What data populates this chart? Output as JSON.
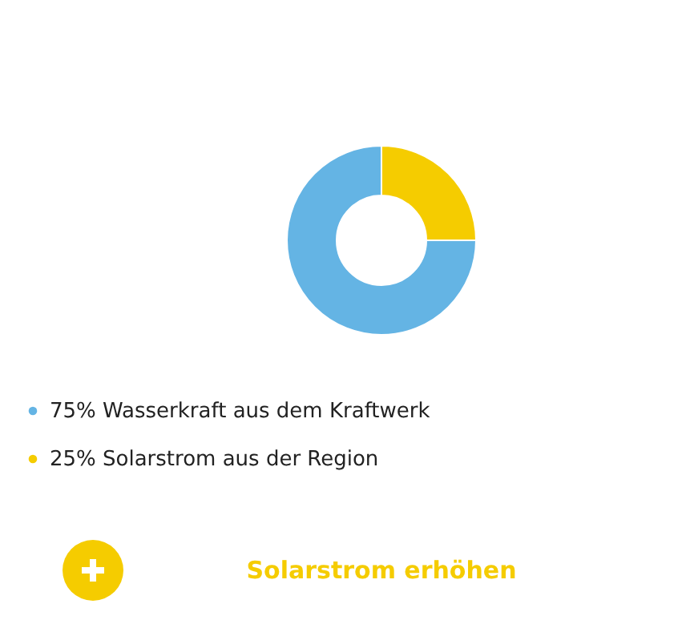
{
  "chart_data": {
    "type": "donut",
    "categories": [
      "75% Wasserkraft aus dem Kraftwerk",
      "25% Solarstrom aus der Region"
    ],
    "values": [
      75,
      25
    ],
    "colors": [
      "#64b4e4",
      "#f5cc00"
    ],
    "legend": "bottom left",
    "annotations": [
      "Solarstrom erhöhen"
    ]
  }
}
